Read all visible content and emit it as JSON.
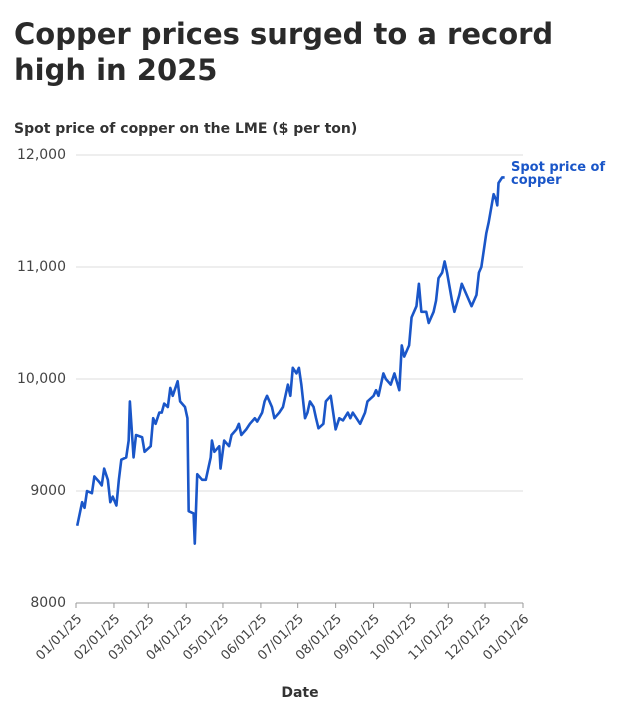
{
  "chart_data": {
    "type": "line",
    "title": "Copper prices surged to a record high in 2025",
    "subtitle": "Spot price of copper on the LME ($ per ton)",
    "xlabel": "Date",
    "x": [
      "2025-01-02",
      "2025-01-06",
      "2025-01-08",
      "2025-01-10",
      "2025-01-14",
      "2025-01-16",
      "2025-01-20",
      "2025-01-22",
      "2025-01-24",
      "2025-01-27",
      "2025-01-29",
      "2025-01-31",
      "2025-02-03",
      "2025-02-05",
      "2025-02-07",
      "2025-02-11",
      "2025-02-13",
      "2025-02-14",
      "2025-02-17",
      "2025-02-19",
      "2025-02-24",
      "2025-02-26",
      "2025-03-03",
      "2025-03-05",
      "2025-03-07",
      "2025-03-10",
      "2025-03-12",
      "2025-03-14",
      "2025-03-17",
      "2025-03-19",
      "2025-03-21",
      "2025-03-25",
      "2025-03-27",
      "2025-03-31",
      "2025-04-02",
      "2025-04-03",
      "2025-04-07",
      "2025-04-08",
      "2025-04-10",
      "2025-04-14",
      "2025-04-17",
      "2025-04-21",
      "2025-04-22",
      "2025-04-24",
      "2025-04-28",
      "2025-04-29",
      "2025-05-02",
      "2025-05-06",
      "2025-05-08",
      "2025-05-12",
      "2025-05-14",
      "2025-05-16",
      "2025-05-20",
      "2025-05-23",
      "2025-05-27",
      "2025-05-29",
      "2025-06-02",
      "2025-06-04",
      "2025-06-06",
      "2025-06-10",
      "2025-06-12",
      "2025-06-16",
      "2025-06-19",
      "2025-06-23",
      "2025-06-25",
      "2025-06-27",
      "2025-06-30",
      "2025-07-02",
      "2025-07-04",
      "2025-07-07",
      "2025-07-09",
      "2025-07-11",
      "2025-07-14",
      "2025-07-16",
      "2025-07-18",
      "2025-07-22",
      "2025-07-24",
      "2025-07-28",
      "2025-07-30",
      "2025-08-01",
      "2025-08-04",
      "2025-08-07",
      "2025-08-11",
      "2025-08-13",
      "2025-08-15",
      "2025-08-18",
      "2025-08-21",
      "2025-08-25",
      "2025-08-27",
      "2025-09-01",
      "2025-09-03",
      "2025-09-05",
      "2025-09-09",
      "2025-09-11",
      "2025-09-15",
      "2025-09-18",
      "2025-09-22",
      "2025-09-24",
      "2025-09-26",
      "2025-09-30",
      "2025-10-02",
      "2025-10-06",
      "2025-10-08",
      "2025-10-10",
      "2025-10-14",
      "2025-10-16",
      "2025-10-20",
      "2025-10-22",
      "2025-10-24",
      "2025-10-27",
      "2025-10-29",
      "2025-10-31",
      "2025-11-04",
      "2025-11-06",
      "2025-11-10",
      "2025-11-12",
      "2025-11-14",
      "2025-11-18",
      "2025-11-20",
      "2025-11-24",
      "2025-11-26",
      "2025-11-28",
      "2025-12-02",
      "2025-12-04",
      "2025-12-08",
      "2025-12-10",
      "2025-12-11",
      "2025-12-12",
      "2025-12-15",
      "2025-12-17"
    ],
    "series": [
      {
        "name": "Spot price of copper",
        "color": "#1a56c8",
        "values": [
          8690,
          8900,
          8850,
          9000,
          8980,
          9130,
          9080,
          9050,
          9200,
          9100,
          8900,
          8950,
          8870,
          9100,
          9280,
          9300,
          9450,
          9800,
          9300,
          9500,
          9480,
          9350,
          9400,
          9650,
          9600,
          9700,
          9700,
          9780,
          9750,
          9920,
          9850,
          9980,
          9800,
          9750,
          9650,
          8820,
          8800,
          8530,
          9150,
          9100,
          9100,
          9300,
          9450,
          9350,
          9400,
          9200,
          9450,
          9400,
          9500,
          9550,
          9600,
          9500,
          9550,
          9600,
          9650,
          9620,
          9700,
          9800,
          9850,
          9750,
          9650,
          9700,
          9750,
          9950,
          9850,
          10100,
          10050,
          10100,
          9950,
          9650,
          9700,
          9800,
          9750,
          9650,
          9560,
          9600,
          9800,
          9850,
          9700,
          9550,
          9650,
          9630,
          9700,
          9650,
          9700,
          9650,
          9600,
          9700,
          9800,
          9850,
          9900,
          9850,
          10050,
          10000,
          9950,
          10050,
          9900,
          10300,
          10200,
          10300,
          10550,
          10650,
          10850,
          10600,
          10600,
          10500,
          10600,
          10700,
          10900,
          10950,
          11050,
          10950,
          10700,
          10600,
          10750,
          10850,
          10800,
          10700,
          10650,
          10750,
          10950,
          11000,
          11300,
          11400,
          11650,
          11600,
          11550,
          11750,
          11800,
          11800
        ]
      }
    ],
    "xlim": [
      "2025-01-01",
      "2026-01-01"
    ],
    "xticks": [
      {
        "value": "2025-01-01",
        "label": "01/01/25"
      },
      {
        "value": "2025-02-01",
        "label": "02/01/25"
      },
      {
        "value": "2025-03-01",
        "label": "03/01/25"
      },
      {
        "value": "2025-04-01",
        "label": "04/01/25"
      },
      {
        "value": "2025-05-01",
        "label": "05/01/25"
      },
      {
        "value": "2025-06-01",
        "label": "06/01/25"
      },
      {
        "value": "2025-07-01",
        "label": "07/01/25"
      },
      {
        "value": "2025-08-01",
        "label": "08/01/25"
      },
      {
        "value": "2025-09-01",
        "label": "09/01/25"
      },
      {
        "value": "2025-10-01",
        "label": "10/01/25"
      },
      {
        "value": "2025-11-01",
        "label": "11/01/25"
      },
      {
        "value": "2025-12-01",
        "label": "12/01/25"
      },
      {
        "value": "2026-01-01",
        "label": "01/01/26"
      }
    ],
    "ylim": [
      8000,
      12000
    ],
    "yticks": [
      8000,
      9000,
      {
        "value": 10000,
        "label": "10,000"
      },
      {
        "value": 11000,
        "label": "11,000"
      },
      {
        "value": 12000,
        "label": "12,000"
      }
    ],
    "grid": true
  }
}
